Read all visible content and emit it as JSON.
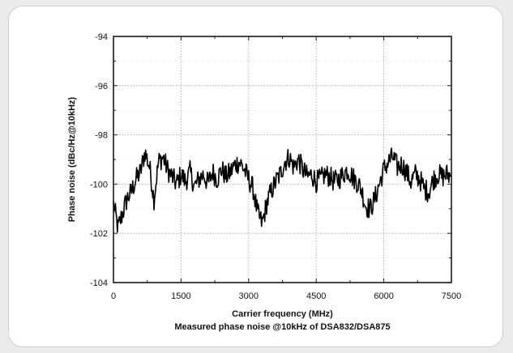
{
  "chart_data": {
    "type": "line",
    "title": "",
    "caption": "Measured phase noise @10kHz of DSA832/DSA875",
    "xlabel": "Carrier frequency (MHz)",
    "ylabel": "Phase noise (dBc/Hz@10kHz)",
    "xlim": [
      0,
      7500
    ],
    "ylim": [
      -104,
      -94
    ],
    "xticks": [
      0,
      1500,
      3000,
      4500,
      6000,
      7500
    ],
    "yticks": [
      -104,
      -102,
      -100,
      -98,
      -96,
      -94
    ],
    "xtick_labels": [
      "0",
      "1500",
      "3000",
      "4500",
      "6000",
      "7500"
    ],
    "ytick_labels": [
      "-104",
      "-102",
      "-100",
      "-98",
      "-96",
      "-94"
    ],
    "grid": true,
    "legend": "none",
    "line_color": "#000000",
    "series": [
      {
        "x": [
          0,
          100,
          200,
          300,
          400,
          500,
          600,
          700,
          800,
          900,
          1000,
          1100,
          1200,
          1300,
          1400,
          1500,
          1600,
          1700,
          1800,
          1900,
          2000,
          2100,
          2200,
          2300,
          2400,
          2500,
          2600,
          2700,
          2800,
          2900,
          3000,
          3100,
          3200,
          3300,
          3400,
          3500,
          3600,
          3700,
          3800,
          3900,
          4000,
          4100,
          4200,
          4300,
          4400,
          4500,
          4600,
          4700,
          4800,
          4900,
          5000,
          5100,
          5200,
          5300,
          5400,
          5500,
          5600,
          5700,
          5800,
          5900,
          6000,
          6100,
          6200,
          6300,
          6400,
          6500,
          6600,
          6700,
          6800,
          6900,
          7000,
          7100,
          7200,
          7300,
          7400,
          7500
        ],
        "values": [
          -100.8,
          -101.8,
          -101.2,
          -100.6,
          -100.3,
          -99.8,
          -99.5,
          -98.7,
          -99.3,
          -100.6,
          -99.1,
          -98.9,
          -99.4,
          -99.7,
          -100.0,
          -99.6,
          -99.9,
          -99.5,
          -100.1,
          -99.8,
          -99.6,
          -100.0,
          -99.5,
          -99.8,
          -99.4,
          -99.7,
          -99.5,
          -99.2,
          -99.1,
          -99.4,
          -99.8,
          -100.2,
          -101.2,
          -101.6,
          -100.8,
          -100.3,
          -99.9,
          -99.6,
          -99.1,
          -98.9,
          -99.3,
          -99.0,
          -99.4,
          -99.7,
          -99.6,
          -99.9,
          -99.8,
          -99.6,
          -99.7,
          -99.9,
          -99.8,
          -99.6,
          -99.4,
          -99.7,
          -99.9,
          -100.2,
          -100.9,
          -101.0,
          -100.6,
          -100.0,
          -99.4,
          -99.1,
          -98.9,
          -99.3,
          -99.2,
          -99.5,
          -99.9,
          -99.6,
          -99.8,
          -100.2,
          -100.3,
          -99.8,
          -99.6,
          -99.7,
          -99.6,
          -99.7
        ]
      }
    ]
  }
}
